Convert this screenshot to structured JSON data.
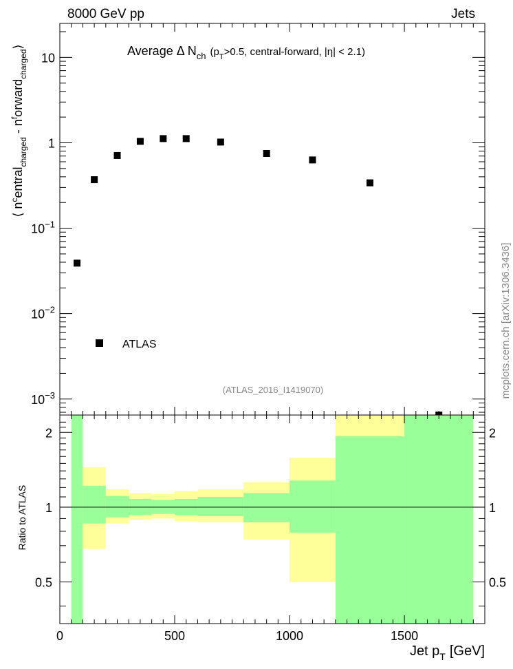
{
  "header": {
    "left": "8000 GeV pp",
    "right": "Jets"
  },
  "side_label": "mcplots.cern.ch [arXiv:1306.3436]",
  "chart_data": [
    {
      "type": "scatter",
      "title": "Average Δ N",
      "title_sub": "ch",
      "title_extra": "(p",
      "title_extra_sub": "T",
      "title_extra_tail": ">0.5, central-forward, |η| < 2.1)",
      "ylabel": "⟨ n^c entral_charged - n^f orward_charged ⟩",
      "ylabel_parts": {
        "open": "⟨ n",
        "sup1": "c",
        "mid1": "entral",
        "sub1": "charged",
        "mid2": " - n",
        "sup2": "f",
        "mid3": "orward",
        "sub2": "charged",
        "close": "⟩"
      },
      "yscale": "log",
      "ylim": [
        0.00065,
        25
      ],
      "xlim": [
        0,
        1850
      ],
      "y_ticks": [
        {
          "value": 0.001,
          "base": "10",
          "exp": "−3"
        },
        {
          "value": 0.01,
          "base": "10",
          "exp": "−2"
        },
        {
          "value": 0.1,
          "base": "10",
          "exp": "−1"
        },
        {
          "value": 1,
          "base": "1",
          "exp": ""
        },
        {
          "value": 10,
          "base": "10",
          "exp": ""
        }
      ],
      "series": [
        {
          "name": "ATLAS",
          "points": [
            {
              "x": 75,
              "y": 0.039
            },
            {
              "x": 150,
              "y": 0.37
            },
            {
              "x": 250,
              "y": 0.71
            },
            {
              "x": 350,
              "y": 1.04
            },
            {
              "x": 450,
              "y": 1.12
            },
            {
              "x": 550,
              "y": 1.12
            },
            {
              "x": 700,
              "y": 1.02
            },
            {
              "x": 900,
              "y": 0.75
            },
            {
              "x": 1100,
              "y": 0.63
            },
            {
              "x": 1350,
              "y": 0.34
            },
            {
              "x": 1650,
              "y": 0.00064
            }
          ]
        }
      ],
      "watermark": "(ATLAS_2016_I1419070)"
    },
    {
      "type": "area",
      "ylabel": "Ratio to ATLAS",
      "xlabel": "Jet p",
      "xlabel_sub": "T",
      "xlabel_unit": "[GeV]",
      "xlim": [
        0,
        1850
      ],
      "ylim": [
        0.34,
        2.35
      ],
      "x_ticks": [
        "0",
        "500",
        "1000",
        "1500"
      ],
      "x_tick_values": [
        0,
        500,
        1000,
        1500
      ],
      "y_ticks": [
        "0.5",
        "1",
        "2"
      ],
      "y_tick_values": [
        0.5,
        1,
        2
      ],
      "reference_line": 1,
      "bands": [
        {
          "x0": 50,
          "x1": 100,
          "yellow": [
            0.34,
            2.35
          ],
          "green": [
            0.34,
            2.35
          ]
        },
        {
          "x0": 100,
          "x1": 200,
          "yellow": [
            0.68,
            1.45
          ],
          "green": [
            0.86,
            1.22
          ]
        },
        {
          "x0": 200,
          "x1": 300,
          "yellow": [
            0.86,
            1.18
          ],
          "green": [
            0.91,
            1.11
          ]
        },
        {
          "x0": 300,
          "x1": 400,
          "yellow": [
            0.89,
            1.14
          ],
          "green": [
            0.93,
            1.08
          ]
        },
        {
          "x0": 400,
          "x1": 500,
          "yellow": [
            0.9,
            1.13
          ],
          "green": [
            0.94,
            1.07
          ]
        },
        {
          "x0": 500,
          "x1": 600,
          "yellow": [
            0.88,
            1.16
          ],
          "green": [
            0.93,
            1.08
          ]
        },
        {
          "x0": 600,
          "x1": 800,
          "yellow": [
            0.87,
            1.18
          ],
          "green": [
            0.92,
            1.1
          ]
        },
        {
          "x0": 800,
          "x1": 1000,
          "yellow": [
            0.74,
            1.26
          ],
          "green": [
            0.87,
            1.14
          ]
        },
        {
          "x0": 1000,
          "x1": 1200,
          "yellow": [
            0.5,
            1.58
          ],
          "green": [
            0.79,
            1.28
          ]
        },
        {
          "x0": 1200,
          "x1": 1500,
          "yellow": [
            0.34,
            2.35
          ],
          "green": [
            0.34,
            1.93
          ]
        },
        {
          "x0": 1500,
          "x1": 1800,
          "yellow": [
            0.34,
            2.35
          ],
          "green": [
            0.34,
            2.35
          ]
        }
      ],
      "colors": {
        "yellow": "#ffff99",
        "green": "#99ff99",
        "marker": "#000000",
        "grey_text": "#888888"
      }
    }
  ]
}
